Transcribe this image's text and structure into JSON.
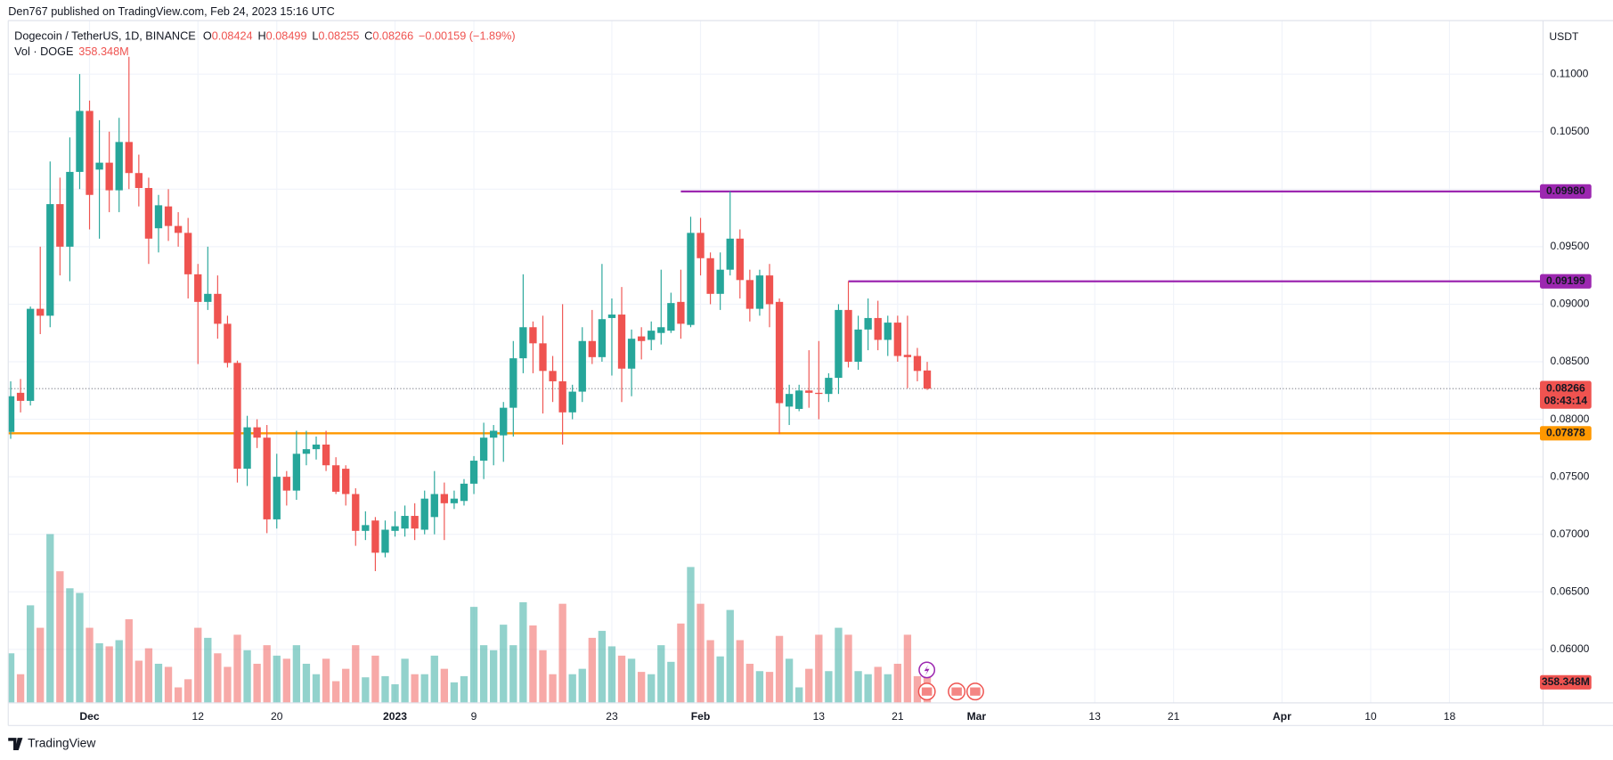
{
  "publisher": "Den767 published on TradingView.com, Feb 24, 2023 15:16 UTC",
  "footer": "TradingView",
  "chart_data": {
    "type": "candlestick",
    "symbol": "Dogecoin / TetherUS, 1D, BINANCE",
    "ohlc_letters": [
      "O",
      "H",
      "L",
      "C"
    ],
    "change": "−0.00159 (−1.89%)",
    "currency": "USDT",
    "countdown": "08:43:14",
    "colors": {
      "up": "#26a69a",
      "down": "#ef5350"
    },
    "grid": true,
    "categories": [
      null,
      null,
      null,
      null,
      null,
      null,
      null,
      null,
      "Dec",
      null,
      null,
      null,
      null,
      null,
      null,
      null,
      null,
      null,
      null,
      "12",
      null,
      null,
      null,
      null,
      null,
      null,
      null,
      "20",
      null,
      null,
      null,
      null,
      null,
      null,
      null,
      null,
      null,
      null,
      null,
      "2023",
      null,
      null,
      null,
      null,
      null,
      null,
      null,
      "9",
      null,
      null,
      null,
      null,
      null,
      null,
      null,
      null,
      null,
      null,
      null,
      null,
      null,
      "23",
      null,
      null,
      null,
      null,
      null,
      null,
      null,
      null,
      "Feb",
      null,
      null,
      null,
      null,
      null,
      null,
      null,
      null,
      null,
      null,
      null,
      "13",
      null,
      null,
      null,
      null,
      null,
      null,
      null,
      "21",
      null,
      null,
      null,
      null,
      null,
      null,
      null,
      "Mar",
      null,
      null,
      null,
      null,
      null,
      null,
      null,
      null,
      null,
      null,
      null,
      "13",
      null,
      null,
      null,
      null,
      null,
      null,
      null,
      "21",
      null,
      null,
      null,
      null,
      null,
      null,
      null,
      null,
      null,
      null,
      "Apr",
      null,
      null,
      null,
      null,
      null,
      null,
      null,
      null,
      "10",
      null,
      null,
      null,
      null,
      null,
      null,
      null,
      "18",
      null,
      null,
      null,
      null,
      null,
      null,
      null,
      null,
      null
    ],
    "open": [
      0.0789,
      0.0823,
      0.0816,
      0.0896,
      0.089,
      0.0987,
      0.095,
      0.1015,
      0.1068,
      0.1017,
      0.1023,
      0.0999,
      0.1041,
      0.1014,
      0.1001,
      0.0966,
      0.0985,
      0.0968,
      0.0962,
      0.0926,
      0.0902,
      0.0909,
      0.0883,
      0.0849,
      0.0757,
      0.0793,
      0.0784,
      0.0713,
      0.075,
      0.0738,
      0.077,
      0.0774,
      0.0778,
      0.076,
      0.0757,
      0.0735,
      0.0703,
      0.0712,
      0.0684,
      0.0703,
      0.0705,
      0.0716,
      0.0704,
      0.0715,
      0.0735,
      0.0727,
      0.0729,
      0.0744,
      0.0764,
      0.0784,
      0.0786,
      0.081,
      0.0853,
      0.088,
      0.0866,
      0.0842,
      0.0833,
      0.0806,
      0.0824,
      0.0868,
      0.0854,
      0.0888,
      0.0891,
      0.0844,
      0.0872,
      0.0869,
      0.0875,
      0.0877,
      0.0902,
      0.0882,
      0.0962,
      0.094,
      0.0909,
      0.093,
      0.0957,
      0.0921,
      0.0896,
      0.0925,
      0.0902,
      0.0811,
      0.0809,
      0.0825,
      0.0823,
      0.0822,
      0.0836,
      0.0895,
      0.085,
      0.0878,
      0.0888,
      0.0869,
      0.0884,
      0.0856,
      0.0855,
      0.08424,
      null,
      null,
      null,
      null,
      null,
      null,
      null,
      null,
      null,
      null,
      null,
      null,
      null,
      null,
      null,
      null,
      null,
      null,
      null,
      null,
      null,
      null,
      null,
      null,
      null,
      null,
      null,
      null,
      null,
      null,
      null,
      null,
      null,
      null,
      null,
      null,
      null,
      null,
      null,
      null,
      null,
      null,
      null,
      null,
      null,
      null,
      null,
      null,
      null,
      null,
      null,
      null,
      null,
      null,
      null,
      null,
      null,
      null,
      null,
      null,
      null,
      null
    ],
    "high": [
      0.0833,
      0.0835,
      0.0898,
      0.095,
      0.1024,
      0.101,
      0.1045,
      0.11,
      0.1077,
      0.106,
      0.105,
      0.1062,
      0.1115,
      0.103,
      0.101,
      0.0995,
      0.1,
      0.098,
      0.0975,
      0.0935,
      0.095,
      0.0925,
      0.089,
      0.0851,
      0.0803,
      0.08,
      0.0795,
      0.077,
      0.0755,
      0.079,
      0.079,
      0.0785,
      0.079,
      0.0767,
      0.076,
      0.074,
      0.072,
      0.0715,
      0.0712,
      0.072,
      0.0725,
      0.0727,
      0.0738,
      0.0755,
      0.0745,
      0.0738,
      0.0748,
      0.0768,
      0.0797,
      0.0795,
      0.0815,
      0.0868,
      0.0926,
      0.0885,
      0.089,
      0.0855,
      0.09,
      0.083,
      0.088,
      0.0895,
      0.0935,
      0.0905,
      0.0915,
      0.0878,
      0.088,
      0.0885,
      0.093,
      0.091,
      0.093,
      0.0976,
      0.0975,
      0.0945,
      0.0945,
      0.0998,
      0.0965,
      0.093,
      0.093,
      0.0935,
      0.0905,
      0.083,
      0.083,
      0.086,
      0.0868,
      0.084,
      0.09,
      0.092,
      0.089,
      0.0905,
      0.0903,
      0.089,
      0.089,
      0.089,
      0.0862,
      0.08499,
      null,
      null,
      null,
      null,
      null,
      null,
      null,
      null,
      null,
      null,
      null,
      null,
      null,
      null,
      null,
      null,
      null,
      null,
      null,
      null,
      null,
      null,
      null,
      null,
      null,
      null,
      null,
      null,
      null,
      null,
      null,
      null,
      null,
      null,
      null,
      null,
      null,
      null,
      null,
      null,
      null,
      null,
      null,
      null,
      null,
      null,
      null,
      null,
      null,
      null,
      null,
      null,
      null,
      null,
      null,
      null,
      null,
      null,
      null,
      null,
      null,
      null
    ],
    "low": [
      0.0783,
      0.0806,
      0.0812,
      0.0874,
      0.088,
      0.0925,
      0.092,
      0.1,
      0.0965,
      0.0957,
      0.098,
      0.098,
      0.1,
      0.0985,
      0.0935,
      0.0945,
      0.0955,
      0.095,
      0.0905,
      0.0848,
      0.0895,
      0.087,
      0.0845,
      0.0745,
      0.0742,
      0.0775,
      0.0701,
      0.0705,
      0.0725,
      0.073,
      0.076,
      0.0765,
      0.0755,
      0.0735,
      0.0725,
      0.069,
      0.0695,
      0.0668,
      0.068,
      0.0698,
      0.0698,
      0.0695,
      0.07,
      0.07,
      0.0695,
      0.0722,
      0.0725,
      0.0735,
      0.0748,
      0.076,
      0.0763,
      0.0785,
      0.084,
      0.084,
      0.0805,
      0.0815,
      0.0778,
      0.08,
      0.0815,
      0.0848,
      0.085,
      0.0838,
      0.0815,
      0.082,
      0.0852,
      0.086,
      0.0865,
      0.0875,
      0.087,
      0.088,
      0.0925,
      0.09,
      0.0895,
      0.0925,
      0.0905,
      0.0885,
      0.089,
      0.088,
      0.0787,
      0.0795,
      0.0807,
      0.081,
      0.08,
      0.0815,
      0.0822,
      0.0845,
      0.0843,
      0.086,
      0.086,
      0.0855,
      0.085,
      0.0827,
      0.0833,
      0.08255,
      null,
      null,
      null,
      null,
      null,
      null,
      null,
      null,
      null,
      null,
      null,
      null,
      null,
      null,
      null,
      null,
      null,
      null,
      null,
      null,
      null,
      null,
      null,
      null,
      null,
      null,
      null,
      null,
      null,
      null,
      null,
      null,
      null,
      null,
      null,
      null,
      null,
      null,
      null,
      null,
      null,
      null,
      null,
      null,
      null,
      null,
      null,
      null,
      null,
      null,
      null,
      null,
      null,
      null,
      null,
      null,
      null,
      null,
      null,
      null,
      null,
      null
    ],
    "close": [
      0.082,
      0.0816,
      0.0896,
      0.089,
      0.0987,
      0.095,
      0.1015,
      0.1068,
      0.0995,
      0.1023,
      0.0999,
      0.1041,
      0.1014,
      0.1001,
      0.0957,
      0.0986,
      0.0968,
      0.0962,
      0.0926,
      0.0902,
      0.0909,
      0.0883,
      0.0849,
      0.0757,
      0.0793,
      0.0784,
      0.0713,
      0.075,
      0.0738,
      0.077,
      0.0774,
      0.0778,
      0.076,
      0.0737,
      0.0735,
      0.0703,
      0.0708,
      0.0684,
      0.0704,
      0.0707,
      0.0716,
      0.0705,
      0.0731,
      0.0735,
      0.0727,
      0.0731,
      0.0744,
      0.0764,
      0.0784,
      0.079,
      0.081,
      0.0853,
      0.088,
      0.0866,
      0.0842,
      0.0833,
      0.0806,
      0.0824,
      0.0868,
      0.0854,
      0.0887,
      0.0891,
      0.0844,
      0.087,
      0.0868,
      0.0877,
      0.088,
      0.0901,
      0.0883,
      0.0962,
      0.094,
      0.0909,
      0.093,
      0.0957,
      0.0921,
      0.0896,
      0.0925,
      0.09,
      0.0814,
      0.0822,
      0.0825,
      0.0823,
      0.0822,
      0.0836,
      0.0895,
      0.085,
      0.0878,
      0.0888,
      0.0869,
      0.0884,
      0.0855,
      0.0854,
      0.0842,
      0.08266,
      null,
      null,
      null,
      null,
      null,
      null,
      null,
      null,
      null,
      null,
      null,
      null,
      null,
      null,
      null,
      null,
      null,
      null,
      null,
      null,
      null,
      null,
      null,
      null,
      null,
      null,
      null,
      null,
      null,
      null,
      null,
      null,
      null,
      null,
      null,
      null,
      null,
      null,
      null,
      null,
      null,
      null,
      null,
      null,
      null,
      null,
      null,
      null,
      null,
      null,
      null,
      null,
      null,
      null,
      null,
      null,
      null,
      null,
      null,
      null,
      null,
      null
    ],
    "volume": {
      "name": "Vol · DOGE",
      "values": [
        640,
        370,
        1260,
        970,
        2180,
        1700,
        1480,
        1420,
        970,
        770,
        730,
        810,
        1080,
        545,
        705,
        505,
        465,
        200,
        305,
        970,
        840,
        640,
        465,
        880,
        680,
        505,
        745,
        610,
        570,
        745,
        505,
        370,
        570,
        280,
        440,
        745,
        330,
        610,
        345,
        240,
        570,
        370,
        370,
        610,
        440,
        265,
        345,
        1240,
        745,
        680,
        1010,
        745,
        1300,
        1000,
        680,
        370,
        1280,
        370,
        440,
        840,
        930,
        730,
        610,
        570,
        400,
        370,
        745,
        530,
        1025,
        1755,
        1280,
        810,
        600,
        1200,
        810,
        505,
        410,
        400,
        865,
        570,
        200,
        440,
        880,
        410,
        970,
        880,
        410,
        370,
        465,
        370,
        505,
        880,
        345,
        358.348,
        null,
        null,
        null,
        null,
        null,
        null,
        null,
        null,
        null,
        null,
        null,
        null,
        null,
        null,
        null,
        null,
        null,
        null,
        null,
        null,
        null,
        null,
        null,
        null,
        null,
        null,
        null,
        null,
        null,
        null,
        null,
        null,
        null,
        null,
        null,
        null,
        null,
        null,
        null,
        null,
        null,
        null,
        null,
        null,
        null,
        null,
        null,
        null,
        null,
        null,
        null,
        null,
        null,
        null,
        null,
        null,
        null,
        null,
        null,
        null,
        null,
        null
      ],
      "value_labels": [
        null,
        null,
        null,
        null,
        null,
        null,
        null,
        null,
        null,
        null,
        null,
        null,
        null,
        null,
        null,
        null,
        null,
        null,
        null,
        null,
        null,
        null,
        null,
        null,
        null,
        null,
        null,
        null,
        null,
        null,
        null,
        null,
        null,
        null,
        null,
        null,
        null,
        null,
        null,
        null,
        null,
        null,
        null,
        null,
        null,
        null,
        null,
        null,
        null,
        null,
        null,
        null,
        null,
        null,
        null,
        null,
        null,
        null,
        null,
        null,
        null,
        null,
        null,
        null,
        null,
        null,
        null,
        null,
        null,
        null,
        null,
        null,
        null,
        null,
        null,
        null,
        null,
        null,
        null,
        null,
        null,
        null,
        null,
        null,
        null,
        null,
        null,
        null,
        null,
        null,
        null,
        null,
        null,
        "358.348M",
        null,
        null,
        null,
        null,
        null,
        null,
        null,
        null,
        null,
        null,
        null,
        null,
        null,
        null,
        null,
        null,
        null,
        null,
        null,
        null,
        null,
        null,
        null,
        null,
        null,
        null,
        null,
        null,
        null,
        null,
        null,
        null,
        null,
        null,
        null,
        null,
        null,
        null,
        null,
        null,
        null,
        null,
        null,
        null,
        null,
        null,
        null,
        null,
        null,
        null,
        null,
        null,
        null,
        null,
        null,
        null,
        null,
        null,
        null,
        null,
        null,
        null
      ]
    },
    "ylim": [
      0.05535,
      0.11465
    ],
    "yticks": [
      {
        "value": 0.06,
        "label": "0.06000"
      },
      {
        "value": 0.065,
        "label": "0.06500"
      },
      {
        "value": 0.07,
        "label": "0.07000"
      },
      {
        "value": 0.075,
        "label": "0.07500"
      },
      {
        "value": 0.08,
        "label": "0.08000"
      },
      {
        "value": 0.085,
        "label": "0.08500"
      },
      {
        "value": 0.09,
        "label": "0.09000"
      },
      {
        "value": 0.095,
        "label": "0.09500"
      },
      {
        "value": 0.1,
        "label": "0.10000"
      },
      {
        "value": 0.105,
        "label": "0.10500"
      },
      {
        "value": 0.11,
        "label": "0.11000"
      }
    ],
    "levels": [
      {
        "value": 0.0998,
        "label": "0.09980",
        "color": "#9c27b0"
      },
      {
        "value": 0.09199,
        "label": "0.09199",
        "color": "#9c27b0"
      },
      {
        "value": 0.07878,
        "label": "0.07878",
        "color": "#ff9800"
      }
    ]
  }
}
